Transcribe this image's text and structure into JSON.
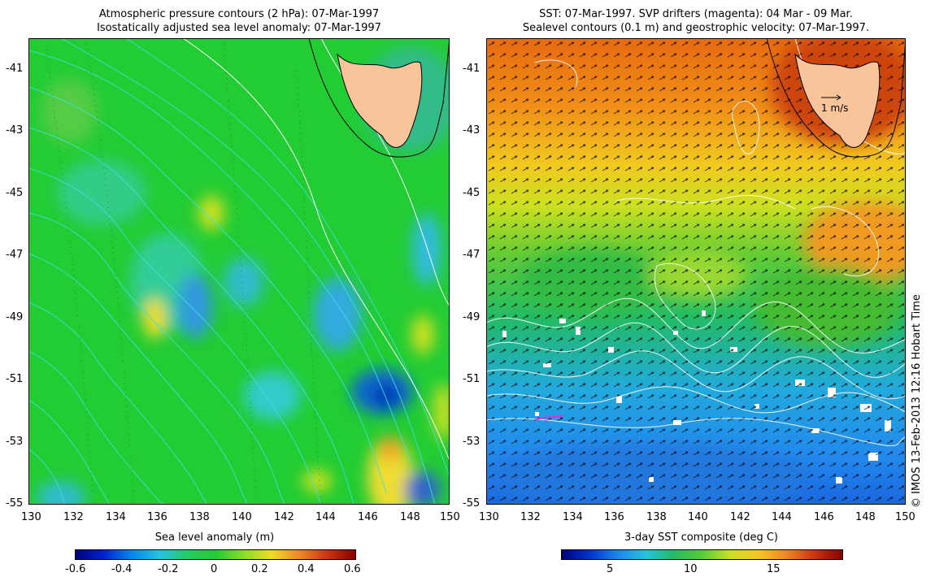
{
  "left_panel": {
    "title_line1": "Atmospheric pressure contours (2 hPa): 07-Mar-1997",
    "title_line2": "Isostatically adjusted sea level anomaly: 07-Mar-1997",
    "y_ticks": [
      "-41",
      "-43",
      "-45",
      "-47",
      "-49",
      "-51",
      "-53",
      "-55"
    ],
    "x_ticks": [
      "130",
      "132",
      "134",
      "136",
      "138",
      "140",
      "142",
      "144",
      "146",
      "148",
      "150"
    ],
    "colorbar_title": "Sea level anomaly (m)",
    "colorbar_ticks": [
      "-0.6",
      "-0.4",
      "-0.2",
      "0",
      "0.2",
      "0.4",
      "0.6"
    ]
  },
  "right_panel": {
    "title_line1": "SST: 07-Mar-1997. SVP drifters (magenta): 04 Mar - 09 Mar.",
    "title_line2": "Sealevel contours (0.1 m) and geostrophic velocity: 07-Mar-1997.",
    "y_ticks": [
      "-41",
      "-43",
      "-45",
      "-47",
      "-49",
      "-51",
      "-53",
      "-55"
    ],
    "x_ticks": [
      "130",
      "132",
      "134",
      "136",
      "138",
      "140",
      "142",
      "144",
      "146",
      "148",
      "150"
    ],
    "velocity_key": "1 m/s",
    "colorbar_title": "3-day SST composite (deg C)",
    "colorbar_ticks": [
      "5",
      "10",
      "15"
    ]
  },
  "credit": "© IMOS 13-Feb-2013 12:16 Hobart Time",
  "colors": {
    "land": "#f9c49a",
    "sla_background": "#22cc33",
    "sst_warm": "#e87010",
    "sst_cold": "#2090e0",
    "pressure_contour": "#40e0e0",
    "sealevel_contour": "#ffffff"
  },
  "map_extent": {
    "lon": [
      130,
      150
    ],
    "lat": [
      -55,
      -40
    ]
  }
}
